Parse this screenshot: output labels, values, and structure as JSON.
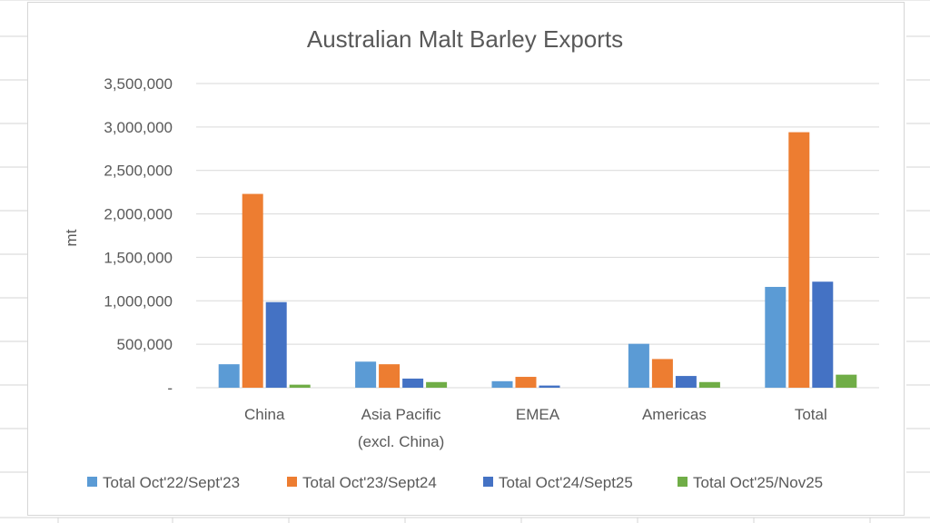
{
  "chart_data": {
    "type": "bar",
    "title": "Australian Malt Barley Exports",
    "xlabel": "",
    "ylabel": "mt",
    "categories": [
      [
        "China"
      ],
      [
        "Asia Pacific",
        "(excl. China)"
      ],
      [
        "EMEA"
      ],
      [
        "Americas"
      ],
      [
        "Total"
      ]
    ],
    "ylim": [
      0,
      3500000
    ],
    "yticks": [
      {
        "value": 0,
        "label": "-"
      },
      {
        "value": 500000,
        "label": "500,000"
      },
      {
        "value": 1000000,
        "label": "1,000,000"
      },
      {
        "value": 1500000,
        "label": "1,500,000"
      },
      {
        "value": 2000000,
        "label": "2,000,000"
      },
      {
        "value": 2500000,
        "label": "2,500,000"
      },
      {
        "value": 3000000,
        "label": "3,000,000"
      },
      {
        "value": 3500000,
        "label": "3,500,000"
      }
    ],
    "grid": true,
    "legend_position": "bottom",
    "series": [
      {
        "name": "Total Oct'22/Sept'23",
        "color": "#5b9bd5",
        "values": [
          270000,
          300000,
          75000,
          505000,
          1160000
        ]
      },
      {
        "name": "Total Oct'23/Sept24",
        "color": "#ed7d31",
        "values": [
          2230000,
          270000,
          125000,
          330000,
          2940000
        ]
      },
      {
        "name": "Total Oct'24/Sept25",
        "color": "#4472c4",
        "values": [
          985000,
          105000,
          25000,
          135000,
          1220000
        ]
      },
      {
        "name": "Total Oct'25/Nov25",
        "color": "#70ad47",
        "values": [
          35000,
          65000,
          0,
          65000,
          150000
        ]
      }
    ],
    "colors": {
      "gridline": "#d9d9d9",
      "text": "#595959"
    }
  }
}
